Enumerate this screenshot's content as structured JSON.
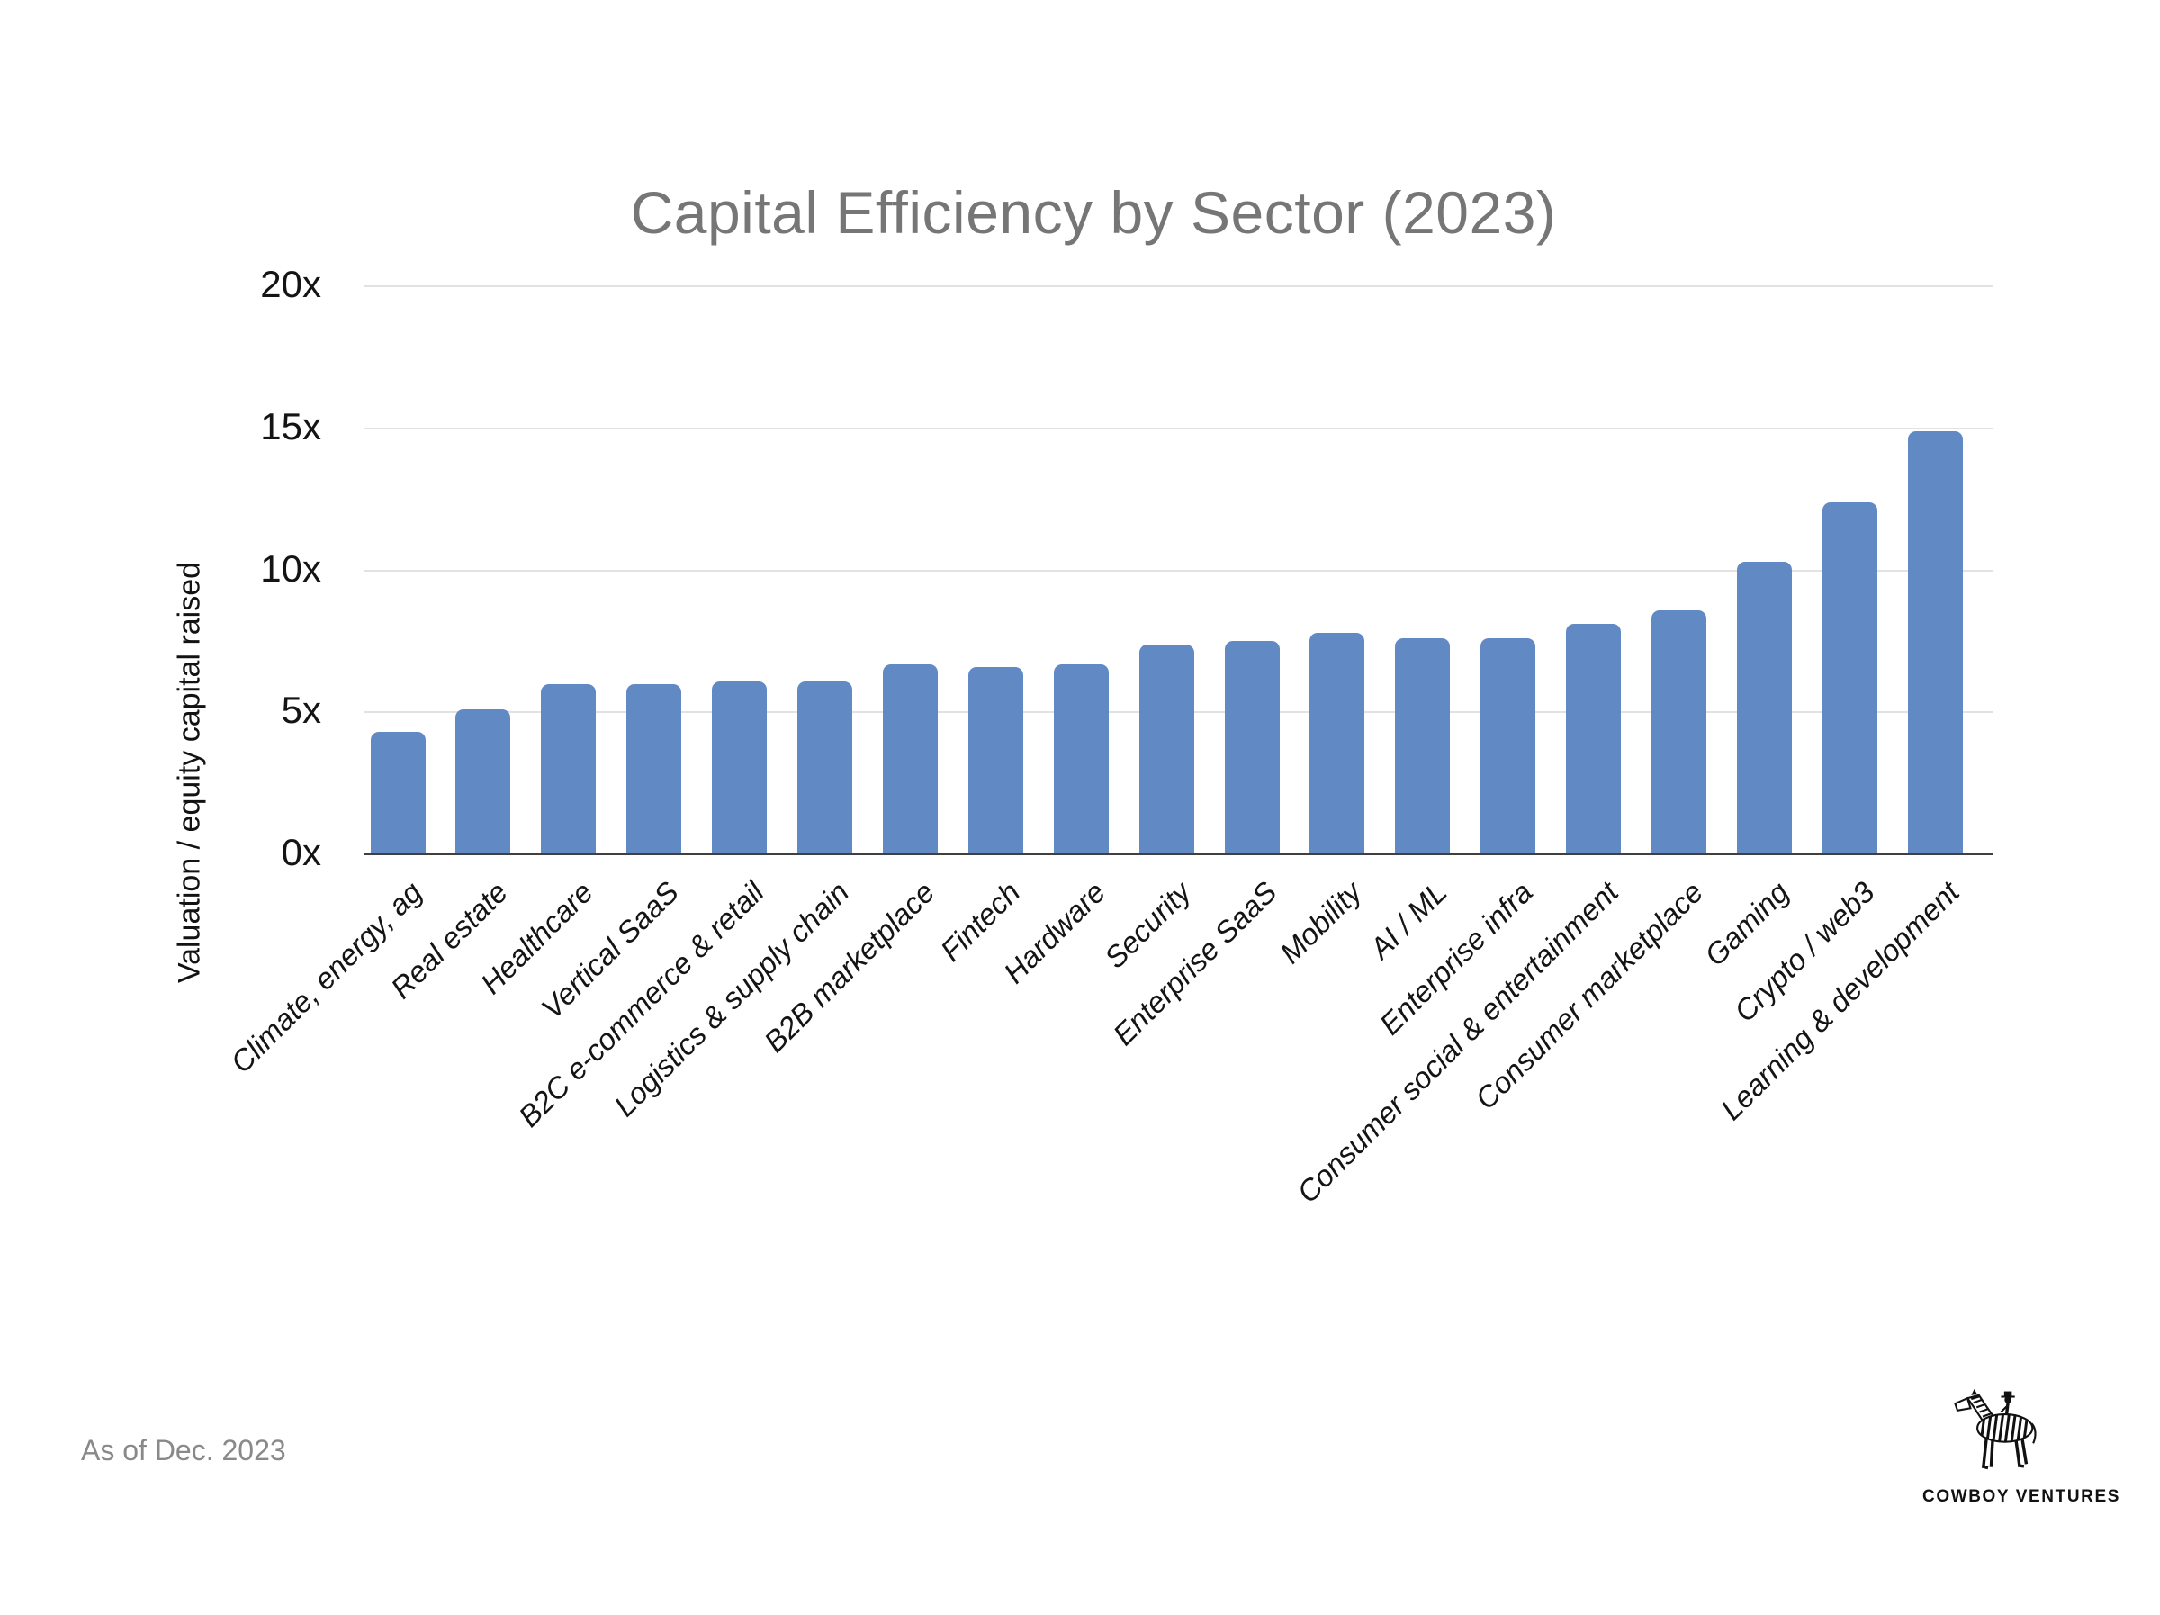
{
  "title": "Capital Efficiency by Sector (2023)",
  "y_axis": {
    "title": "Valuation / equity capital raised",
    "tick_labels": [
      "20x",
      "15x",
      "10x",
      "5x",
      "0x"
    ],
    "tick_values": [
      20,
      15,
      10,
      5,
      0
    ]
  },
  "footer": {
    "as_of": "As of Dec. 2023"
  },
  "logo": {
    "wordmark": "COWBOY VENTURES",
    "icon": "zebra-with-cowboy-rider"
  },
  "colors": {
    "bar": "#6189c4",
    "title_text": "#767676",
    "axis_text": "#141414",
    "gridline": "#e2e2e2",
    "axis_line": "#404040",
    "footer_text": "#898989"
  },
  "chart_data": {
    "type": "bar",
    "title": "Capital Efficiency by Sector (2023)",
    "xlabel": "",
    "ylabel": "Valuation / equity capital raised",
    "ylim": [
      0,
      20
    ],
    "yticks": [
      0,
      5,
      10,
      15,
      20
    ],
    "ytick_format": "{v}x",
    "grid": true,
    "legend": "none",
    "bar_color": "#6189c4",
    "categories": [
      "Climate, energy, ag",
      "Real estate",
      "Healthcare",
      "Vertical SaaS",
      "B2C e-commerce & retail",
      "Logistics & supply chain",
      "B2B marketplace",
      "Fintech",
      "Hardware",
      "Security",
      "Enterprise SaaS",
      "Mobility",
      "AI / ML",
      "Enterprise infra",
      "Consumer social & entertainment",
      "Consumer marketplace",
      "Gaming",
      "Crypto / web3",
      "Learning & development"
    ],
    "values": [
      4.3,
      5.1,
      6.0,
      6.0,
      6.1,
      6.1,
      6.7,
      6.6,
      6.7,
      7.4,
      7.5,
      7.8,
      7.6,
      7.6,
      8.1,
      8.6,
      10.3,
      12.4,
      14.9
    ],
    "as_of": "As of Dec. 2023"
  }
}
